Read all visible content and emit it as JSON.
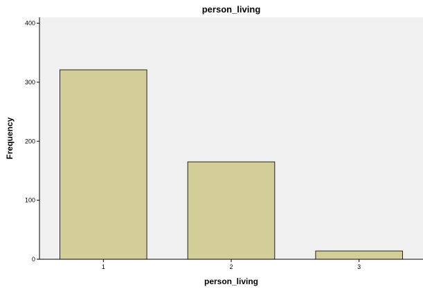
{
  "chart_data": {
    "type": "bar",
    "title": "person_living",
    "xlabel": "person_living",
    "ylabel": "Frequency",
    "categories": [
      "1",
      "2",
      "3"
    ],
    "values": [
      321,
      165,
      14
    ],
    "ylim": [
      0,
      410
    ],
    "yticks": [
      0,
      100,
      200,
      300,
      400
    ],
    "grid": false,
    "legend": "none",
    "colors": {
      "bar_fill": "#d3ce97",
      "bar_stroke": "#222222",
      "plot_background": "#f0f0f0",
      "axis": "#000000"
    }
  }
}
